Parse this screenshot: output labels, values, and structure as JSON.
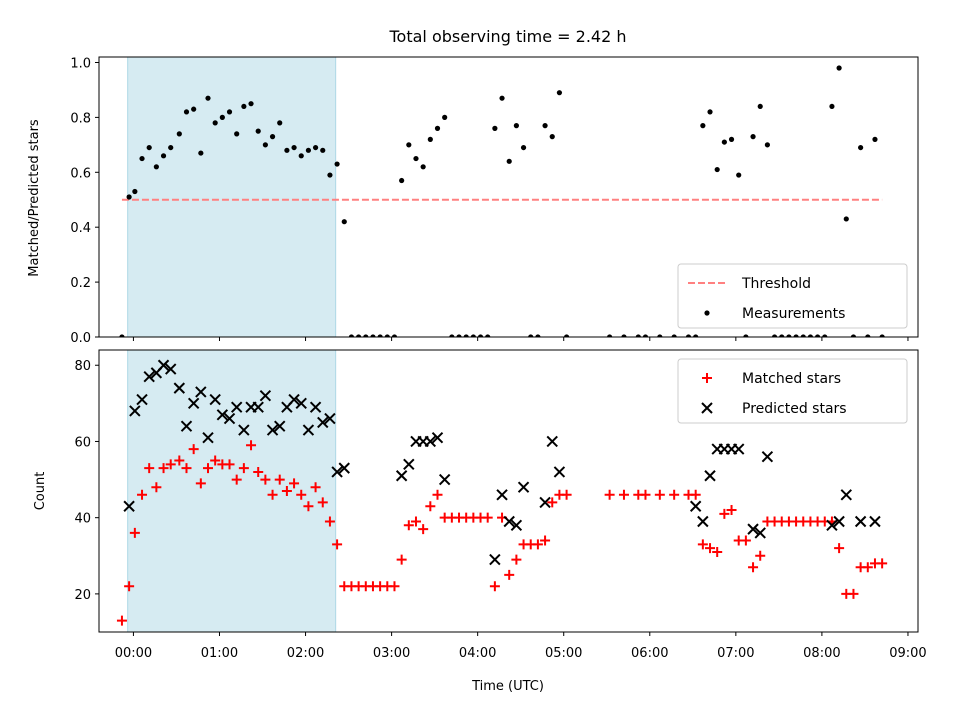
{
  "colors": {
    "shade": "#add8e6",
    "threshold": "#ff8080",
    "matched": "#ff0000",
    "predicted": "#000000",
    "measurement": "#000000"
  },
  "chart_data": [
    {
      "type": "scatter",
      "title": "Total observing time = 2.42 h",
      "xlabel": "",
      "ylabel": "Matched/Predicted stars",
      "xlim": [
        "23:36",
        "09:07"
      ],
      "ylim": [
        0,
        1.02
      ],
      "yticks": [
        "0.0",
        "0.2",
        "0.4",
        "0.6",
        "0.8",
        "1.0"
      ],
      "grid": false,
      "legend": "lower-right",
      "shaded_interval": [
        "23:56",
        "02:21"
      ],
      "threshold": {
        "name": "Threshold",
        "value": 0.5,
        "x_start": "23:52",
        "x_end": "08:42"
      },
      "series": [
        {
          "name": "Measurements",
          "marker": "dot",
          "points": [
            [
              "23:52",
              0.0
            ],
            [
              "23:57",
              0.51
            ],
            [
              "00:01",
              0.53
            ],
            [
              "00:06",
              0.65
            ],
            [
              "00:11",
              0.69
            ],
            [
              "00:16",
              0.62
            ],
            [
              "00:21",
              0.66
            ],
            [
              "00:26",
              0.69
            ],
            [
              "00:32",
              0.74
            ],
            [
              "00:37",
              0.82
            ],
            [
              "00:42",
              0.83
            ],
            [
              "00:47",
              0.67
            ],
            [
              "00:52",
              0.87
            ],
            [
              "00:57",
              0.78
            ],
            [
              "01:02",
              0.8
            ],
            [
              "01:07",
              0.82
            ],
            [
              "01:12",
              0.74
            ],
            [
              "01:17",
              0.84
            ],
            [
              "01:22",
              0.85
            ],
            [
              "01:27",
              0.75
            ],
            [
              "01:32",
              0.7
            ],
            [
              "01:37",
              0.73
            ],
            [
              "01:42",
              0.78
            ],
            [
              "01:47",
              0.68
            ],
            [
              "01:52",
              0.69
            ],
            [
              "01:57",
              0.66
            ],
            [
              "02:02",
              0.68
            ],
            [
              "02:07",
              0.69
            ],
            [
              "02:12",
              0.68
            ],
            [
              "02:17",
              0.59
            ],
            [
              "02:22",
              0.63
            ],
            [
              "02:27",
              0.42
            ],
            [
              "02:32",
              0.0
            ],
            [
              "02:37",
              0.0
            ],
            [
              "02:42",
              0.0
            ],
            [
              "02:47",
              0.0
            ],
            [
              "02:52",
              0.0
            ],
            [
              "02:57",
              0.0
            ],
            [
              "03:02",
              0.0
            ],
            [
              "03:07",
              0.57
            ],
            [
              "03:12",
              0.7
            ],
            [
              "03:17",
              0.65
            ],
            [
              "03:22",
              0.62
            ],
            [
              "03:27",
              0.72
            ],
            [
              "03:32",
              0.76
            ],
            [
              "03:37",
              0.8
            ],
            [
              "03:42",
              0.0
            ],
            [
              "03:47",
              0.0
            ],
            [
              "03:52",
              0.0
            ],
            [
              "03:57",
              0.0
            ],
            [
              "04:02",
              0.0
            ],
            [
              "04:07",
              0.0
            ],
            [
              "04:12",
              0.76
            ],
            [
              "04:17",
              0.87
            ],
            [
              "04:22",
              0.64
            ],
            [
              "04:27",
              0.77
            ],
            [
              "04:32",
              0.69
            ],
            [
              "04:37",
              0.0
            ],
            [
              "04:42",
              0.0
            ],
            [
              "04:47",
              0.77
            ],
            [
              "04:52",
              0.73
            ],
            [
              "04:57",
              0.89
            ],
            [
              "05:02",
              0.0
            ],
            [
              "05:32",
              0.0
            ],
            [
              "05:42",
              0.0
            ],
            [
              "05:52",
              0.0
            ],
            [
              "05:57",
              0.0
            ],
            [
              "06:07",
              0.0
            ],
            [
              "06:17",
              0.0
            ],
            [
              "06:27",
              0.0
            ],
            [
              "06:32",
              0.0
            ],
            [
              "06:37",
              0.77
            ],
            [
              "06:42",
              0.82
            ],
            [
              "06:47",
              0.61
            ],
            [
              "06:52",
              0.71
            ],
            [
              "06:57",
              0.72
            ],
            [
              "07:02",
              0.59
            ],
            [
              "07:07",
              0.0
            ],
            [
              "07:12",
              0.73
            ],
            [
              "07:17",
              0.84
            ],
            [
              "07:22",
              0.7
            ],
            [
              "07:27",
              0.0
            ],
            [
              "07:32",
              0.0
            ],
            [
              "07:37",
              0.0
            ],
            [
              "07:42",
              0.0
            ],
            [
              "07:47",
              0.0
            ],
            [
              "07:52",
              0.0
            ],
            [
              "07:57",
              0.0
            ],
            [
              "08:02",
              0.0
            ],
            [
              "08:07",
              0.84
            ],
            [
              "08:12",
              0.98
            ],
            [
              "08:17",
              0.43
            ],
            [
              "08:22",
              0.0
            ],
            [
              "08:27",
              0.69
            ],
            [
              "08:32",
              0.0
            ],
            [
              "08:37",
              0.72
            ],
            [
              "08:42",
              0.0
            ]
          ]
        }
      ]
    },
    {
      "type": "scatter",
      "title": "",
      "xlabel": "Time (UTC)",
      "ylabel": "Count",
      "xlim": [
        "23:36",
        "09:07"
      ],
      "ylim": [
        10,
        84
      ],
      "xticks": [
        "00:00",
        "01:00",
        "02:00",
        "03:00",
        "04:00",
        "05:00",
        "06:00",
        "07:00",
        "08:00",
        "09:00"
      ],
      "yticks": [
        "20",
        "40",
        "60",
        "80"
      ],
      "grid": false,
      "legend": "upper-right",
      "shaded_interval": [
        "23:56",
        "02:21"
      ],
      "series": [
        {
          "name": "Matched stars",
          "marker": "plus",
          "points": [
            [
              "23:52",
              13
            ],
            [
              "23:57",
              22
            ],
            [
              "00:01",
              36
            ],
            [
              "00:06",
              46
            ],
            [
              "00:11",
              53
            ],
            [
              "00:16",
              48
            ],
            [
              "00:21",
              53
            ],
            [
              "00:26",
              54
            ],
            [
              "00:32",
              55
            ],
            [
              "00:37",
              53
            ],
            [
              "00:42",
              58
            ],
            [
              "00:47",
              49
            ],
            [
              "00:52",
              53
            ],
            [
              "00:57",
              55
            ],
            [
              "01:02",
              54
            ],
            [
              "01:07",
              54
            ],
            [
              "01:12",
              50
            ],
            [
              "01:17",
              53
            ],
            [
              "01:22",
              59
            ],
            [
              "01:27",
              52
            ],
            [
              "01:32",
              50
            ],
            [
              "01:37",
              46
            ],
            [
              "01:42",
              50
            ],
            [
              "01:47",
              47
            ],
            [
              "01:52",
              49
            ],
            [
              "01:57",
              46
            ],
            [
              "02:02",
              43
            ],
            [
              "02:07",
              48
            ],
            [
              "02:12",
              44
            ],
            [
              "02:17",
              39
            ],
            [
              "02:22",
              33
            ],
            [
              "02:27",
              22
            ],
            [
              "02:32",
              22
            ],
            [
              "02:37",
              22
            ],
            [
              "02:42",
              22
            ],
            [
              "02:47",
              22
            ],
            [
              "02:52",
              22
            ],
            [
              "02:57",
              22
            ],
            [
              "03:02",
              22
            ],
            [
              "03:07",
              29
            ],
            [
              "03:12",
              38
            ],
            [
              "03:17",
              39
            ],
            [
              "03:22",
              37
            ],
            [
              "03:27",
              43
            ],
            [
              "03:32",
              46
            ],
            [
              "03:37",
              40
            ],
            [
              "03:42",
              40
            ],
            [
              "03:47",
              40
            ],
            [
              "03:52",
              40
            ],
            [
              "03:57",
              40
            ],
            [
              "04:02",
              40
            ],
            [
              "04:07",
              40
            ],
            [
              "04:12",
              22
            ],
            [
              "04:17",
              40
            ],
            [
              "04:22",
              25
            ],
            [
              "04:27",
              29
            ],
            [
              "04:32",
              33
            ],
            [
              "04:37",
              33
            ],
            [
              "04:42",
              33
            ],
            [
              "04:47",
              34
            ],
            [
              "04:52",
              44
            ],
            [
              "04:57",
              46
            ],
            [
              "05:02",
              46
            ],
            [
              "05:32",
              46
            ],
            [
              "05:42",
              46
            ],
            [
              "05:52",
              46
            ],
            [
              "05:57",
              46
            ],
            [
              "06:07",
              46
            ],
            [
              "06:17",
              46
            ],
            [
              "06:27",
              46
            ],
            [
              "06:32",
              46
            ],
            [
              "06:37",
              33
            ],
            [
              "06:42",
              32
            ],
            [
              "06:47",
              31
            ],
            [
              "06:52",
              41
            ],
            [
              "06:57",
              42
            ],
            [
              "07:02",
              34
            ],
            [
              "07:07",
              34
            ],
            [
              "07:12",
              27
            ],
            [
              "07:17",
              30
            ],
            [
              "07:22",
              39
            ],
            [
              "07:27",
              39
            ],
            [
              "07:32",
              39
            ],
            [
              "07:37",
              39
            ],
            [
              "07:42",
              39
            ],
            [
              "07:47",
              39
            ],
            [
              "07:52",
              39
            ],
            [
              "07:57",
              39
            ],
            [
              "08:02",
              39
            ],
            [
              "08:07",
              39
            ],
            [
              "08:12",
              32
            ],
            [
              "08:17",
              20
            ],
            [
              "08:22",
              20
            ],
            [
              "08:27",
              27
            ],
            [
              "08:32",
              27
            ],
            [
              "08:37",
              28
            ],
            [
              "08:42",
              28
            ]
          ]
        },
        {
          "name": "Predicted stars",
          "marker": "x",
          "points": [
            [
              "23:57",
              43
            ],
            [
              "00:01",
              68
            ],
            [
              "00:06",
              71
            ],
            [
              "00:11",
              77
            ],
            [
              "00:16",
              78
            ],
            [
              "00:21",
              80
            ],
            [
              "00:26",
              79
            ],
            [
              "00:32",
              74
            ],
            [
              "00:37",
              64
            ],
            [
              "00:42",
              70
            ],
            [
              "00:47",
              73
            ],
            [
              "00:52",
              61
            ],
            [
              "00:57",
              71
            ],
            [
              "01:02",
              67
            ],
            [
              "01:07",
              66
            ],
            [
              "01:12",
              69
            ],
            [
              "01:17",
              63
            ],
            [
              "01:22",
              69
            ],
            [
              "01:27",
              69
            ],
            [
              "01:32",
              72
            ],
            [
              "01:37",
              63
            ],
            [
              "01:42",
              64
            ],
            [
              "01:47",
              69
            ],
            [
              "01:52",
              71
            ],
            [
              "01:57",
              70
            ],
            [
              "02:02",
              63
            ],
            [
              "02:07",
              69
            ],
            [
              "02:12",
              65
            ],
            [
              "02:17",
              66
            ],
            [
              "02:22",
              52
            ],
            [
              "02:27",
              53
            ],
            [
              "03:07",
              51
            ],
            [
              "03:12",
              54
            ],
            [
              "03:17",
              60
            ],
            [
              "03:22",
              60
            ],
            [
              "03:27",
              60
            ],
            [
              "03:32",
              61
            ],
            [
              "03:37",
              50
            ],
            [
              "04:12",
              29
            ],
            [
              "04:17",
              46
            ],
            [
              "04:22",
              39
            ],
            [
              "04:27",
              38
            ],
            [
              "04:32",
              48
            ],
            [
              "04:47",
              44
            ],
            [
              "04:52",
              60
            ],
            [
              "04:57",
              52
            ],
            [
              "06:32",
              43
            ],
            [
              "06:37",
              39
            ],
            [
              "06:42",
              51
            ],
            [
              "06:47",
              58
            ],
            [
              "06:52",
              58
            ],
            [
              "06:57",
              58
            ],
            [
              "07:02",
              58
            ],
            [
              "07:12",
              37
            ],
            [
              "07:17",
              36
            ],
            [
              "07:22",
              56
            ],
            [
              "08:07",
              38
            ],
            [
              "08:12",
              39
            ],
            [
              "08:17",
              46
            ],
            [
              "08:27",
              39
            ],
            [
              "08:37",
              39
            ]
          ]
        }
      ]
    }
  ]
}
